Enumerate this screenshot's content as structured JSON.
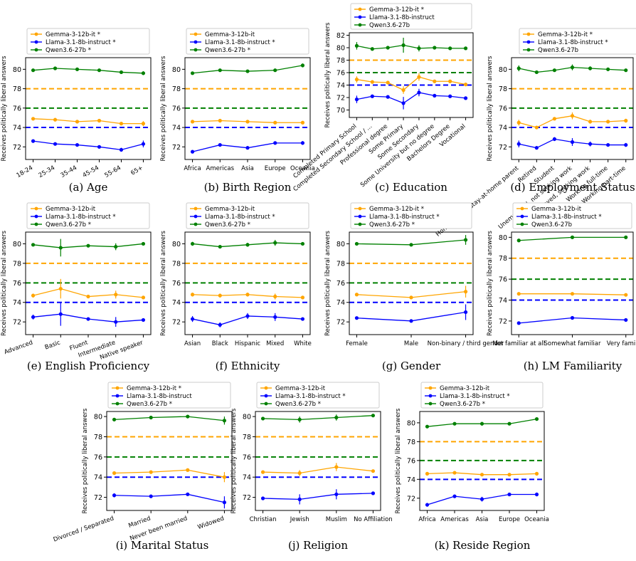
{
  "colors": {
    "gemma": "#FFA500",
    "llama": "#0000FF",
    "qwen": "#008000",
    "axis": "#000000"
  },
  "ylabel": "Receives politically liberal answers",
  "chart_data": [
    {
      "type": "line",
      "caption": "(a) Age",
      "categories": [
        "18-24",
        "25-34",
        "35-44",
        "45-54",
        "55-64",
        "65+"
      ],
      "ylim": [
        70.7,
        81.2
      ],
      "yticks": [
        72,
        74,
        76,
        78,
        80
      ],
      "xlabel_rotation": 30,
      "legend": "top",
      "legend_labels": [
        "Gemma-3-12b-it *",
        "Llama-3.1-8b-instruct *",
        "Qwen3.6-27b *"
      ],
      "series": [
        {
          "name": "Gemma-3-12b-it",
          "color": "#FFA500",
          "values": [
            74.9,
            74.8,
            74.6,
            74.7,
            74.4,
            74.4
          ],
          "errors": [
            0.1,
            0.1,
            0.1,
            0.1,
            0.1,
            0.25
          ],
          "baseline": 78.0
        },
        {
          "name": "Llama-3.1-8b-instruct",
          "color": "#0000FF",
          "values": [
            72.6,
            72.3,
            72.2,
            72.0,
            71.7,
            72.3
          ],
          "errors": [
            0.1,
            0.1,
            0.1,
            0.1,
            0.2,
            0.35
          ],
          "baseline": 74.0
        },
        {
          "name": "Qwen3.6-27b",
          "color": "#008000",
          "values": [
            79.9,
            80.1,
            80.0,
            79.9,
            79.7,
            79.6
          ],
          "errors": [
            0.1,
            0.1,
            0.1,
            0.1,
            0.15,
            0.2
          ],
          "baseline": 76.0
        }
      ]
    },
    {
      "type": "line",
      "caption": "(b) Birth Region",
      "categories": [
        "Africa",
        "Americas",
        "Asia",
        "Europe",
        "Oceania"
      ],
      "ylim": [
        70.7,
        81.2
      ],
      "yticks": [
        72,
        74,
        76,
        78,
        80
      ],
      "xlabel_rotation": 0,
      "legend": "top",
      "legend_labels": [
        "Gemma-3-12b-it",
        "Llama-3.1-8b-instruct *",
        "Qwen3.6-27b *"
      ],
      "series": [
        {
          "name": "Gemma-3-12b-it",
          "color": "#FFA500",
          "values": [
            74.6,
            74.7,
            74.6,
            74.5,
            74.5
          ],
          "errors": [
            0.15,
            0.1,
            0.1,
            0.1,
            0.15
          ],
          "baseline": 78.0
        },
        {
          "name": "Llama-3.1-8b-instruct",
          "color": "#0000FF",
          "values": [
            71.5,
            72.2,
            71.9,
            72.4,
            72.4
          ],
          "errors": [
            0.15,
            0.1,
            0.15,
            0.1,
            0.2
          ],
          "baseline": 74.0
        },
        {
          "name": "Qwen3.6-27b",
          "color": "#008000",
          "values": [
            79.6,
            79.9,
            79.8,
            79.9,
            80.4
          ],
          "errors": [
            0.15,
            0.1,
            0.1,
            0.1,
            0.2
          ],
          "baseline": 76.0
        }
      ]
    },
    {
      "type": "line",
      "caption": "(c) Education",
      "categories": [
        "Completed Primary School",
        "Completed Secondary School / ...",
        "Professional degree",
        "Some Primary",
        "Some Secondary",
        "Some University but no degree",
        "Bachelors Degree",
        "Vocational"
      ],
      "ylim": [
        68.8,
        82.4
      ],
      "yticks": [
        70,
        72,
        74,
        76,
        78,
        80,
        82
      ],
      "xlabel_rotation": 40,
      "legend": "top",
      "legend_labels": [
        "Gemma-3-12b-it *",
        "Llama-3.1-8b-instruct",
        "Qwen3.6-27b"
      ],
      "series": [
        {
          "name": "Gemma-3-12b-it",
          "color": "#FFA500",
          "values": [
            74.9,
            74.5,
            74.4,
            73.2,
            75.3,
            74.6,
            74.6,
            74.1
          ],
          "errors": [
            0.5,
            0.1,
            0.15,
            0.6,
            0.6,
            0.1,
            0.1,
            0.1
          ],
          "baseline": 78.0
        },
        {
          "name": "Llama-3.1-8b-instruct",
          "color": "#0000FF",
          "values": [
            71.7,
            72.2,
            72.1,
            71.1,
            72.8,
            72.3,
            72.2,
            71.9
          ],
          "errors": [
            0.6,
            0.1,
            0.15,
            1.0,
            0.6,
            0.1,
            0.1,
            0.1
          ],
          "baseline": 74.0
        },
        {
          "name": "Qwen3.6-27b",
          "color": "#008000",
          "values": [
            80.3,
            79.8,
            80.0,
            80.4,
            79.9,
            80.0,
            79.9,
            79.9
          ],
          "errors": [
            0.6,
            0.1,
            0.1,
            1.2,
            0.5,
            0.1,
            0.1,
            0.1
          ],
          "baseline": 76.0
        }
      ]
    },
    {
      "type": "line",
      "caption": "(d) Employment Status",
      "categories": [
        "Homemaker / Stay-at-home parent",
        "Retired",
        "Student",
        "Unemployed, not seeking work",
        "Unemployed, seeking work",
        "Working full-time",
        "Working part-time"
      ],
      "ylim": [
        70.7,
        81.2
      ],
      "yticks": [
        72,
        74,
        76,
        78,
        80
      ],
      "xlabel_rotation": 40,
      "legend": "top",
      "legend_labels": [
        "Gemma-3-12b-it *",
        "Llama-3.1-8b-instruct *",
        "Qwen3.6-27b"
      ],
      "series": [
        {
          "name": "Gemma-3-12b-it",
          "color": "#FFA500",
          "values": [
            74.5,
            74.0,
            74.9,
            75.2,
            74.6,
            74.6,
            74.7
          ],
          "errors": [
            0.3,
            0.15,
            0.15,
            0.35,
            0.2,
            0.1,
            0.2
          ],
          "baseline": 78.0
        },
        {
          "name": "Llama-3.1-8b-instruct",
          "color": "#0000FF",
          "values": [
            72.3,
            71.9,
            72.8,
            72.5,
            72.3,
            72.2,
            72.2
          ],
          "errors": [
            0.35,
            0.15,
            0.2,
            0.4,
            0.25,
            0.1,
            0.2
          ],
          "baseline": 74.0
        },
        {
          "name": "Qwen3.6-27b",
          "color": "#008000",
          "values": [
            80.1,
            79.7,
            79.9,
            80.2,
            80.1,
            80.0,
            79.9
          ],
          "errors": [
            0.3,
            0.15,
            0.15,
            0.3,
            0.2,
            0.1,
            0.15
          ],
          "baseline": 76.0
        }
      ]
    },
    {
      "type": "line",
      "caption": "(e) English Proficiency",
      "categories": [
        "Advanced",
        "Basic",
        "Fluent",
        "Intermediate",
        "Native speaker"
      ],
      "ylim": [
        70.7,
        81.2
      ],
      "yticks": [
        72,
        74,
        76,
        78,
        80
      ],
      "xlabel_rotation": 20,
      "legend": "top",
      "legend_labels": [
        "Gemma-3-12b-it",
        "Llama-3.1-8b-instruct *",
        "Qwen3.6-27b *"
      ],
      "series": [
        {
          "name": "Gemma-3-12b-it",
          "color": "#FFA500",
          "values": [
            74.7,
            75.4,
            74.6,
            74.8,
            74.5
          ],
          "errors": [
            0.2,
            1.0,
            0.1,
            0.4,
            0.1
          ],
          "baseline": 78.0
        },
        {
          "name": "Llama-3.1-8b-instruct",
          "color": "#0000FF",
          "values": [
            72.5,
            72.8,
            72.3,
            72.0,
            72.2
          ],
          "errors": [
            0.25,
            1.2,
            0.1,
            0.5,
            0.1
          ],
          "baseline": 74.0
        },
        {
          "name": "Qwen3.6-27b",
          "color": "#008000",
          "values": [
            79.9,
            79.6,
            79.8,
            79.7,
            80.0
          ],
          "errors": [
            0.15,
            0.9,
            0.1,
            0.35,
            0.1
          ],
          "baseline": 76.0
        }
      ]
    },
    {
      "type": "line",
      "caption": "(f) Ethnicity",
      "categories": [
        "Asian",
        "Black",
        "Hispanic",
        "Mixed",
        "White"
      ],
      "ylim": [
        70.7,
        81.2
      ],
      "yticks": [
        72,
        74,
        76,
        78,
        80
      ],
      "xlabel_rotation": 0,
      "legend": "top",
      "legend_labels": [
        "Gemma-3-12b-it",
        "Llama-3.1-8b-instruct *",
        "Qwen3.6-27b *"
      ],
      "series": [
        {
          "name": "Gemma-3-12b-it",
          "color": "#FFA500",
          "values": [
            74.8,
            74.7,
            74.8,
            74.6,
            74.5
          ],
          "errors": [
            0.2,
            0.2,
            0.2,
            0.3,
            0.1
          ],
          "baseline": 78.0
        },
        {
          "name": "Llama-3.1-8b-instruct",
          "color": "#0000FF",
          "values": [
            72.3,
            71.7,
            72.6,
            72.5,
            72.3
          ],
          "errors": [
            0.3,
            0.25,
            0.3,
            0.4,
            0.1
          ],
          "baseline": 74.0
        },
        {
          "name": "Qwen3.6-27b",
          "color": "#008000",
          "values": [
            80.0,
            79.7,
            79.9,
            80.1,
            80.0
          ],
          "errors": [
            0.2,
            0.15,
            0.2,
            0.3,
            0.1
          ],
          "baseline": 76.0
        }
      ]
    },
    {
      "type": "line",
      "caption": "(g) Gender",
      "categories": [
        "Female",
        "Male",
        "Non-binary / third gender"
      ],
      "ylim": [
        70.7,
        81.2
      ],
      "yticks": [
        72,
        74,
        76,
        78,
        80
      ],
      "xlabel_rotation": 0,
      "legend": "top",
      "legend_labels": [
        "Gemma-3-12b-it *",
        "Llama-3.1-8b-instruct *",
        "Qwen3.6-27b *"
      ],
      "series": [
        {
          "name": "Gemma-3-12b-it",
          "color": "#FFA500",
          "values": [
            74.8,
            74.5,
            75.1
          ],
          "errors": [
            0.1,
            0.1,
            0.6
          ],
          "baseline": 78.0
        },
        {
          "name": "Llama-3.1-8b-instruct",
          "color": "#0000FF",
          "values": [
            72.4,
            72.1,
            73.0
          ],
          "errors": [
            0.1,
            0.1,
            0.8
          ],
          "baseline": 74.0
        },
        {
          "name": "Qwen3.6-27b",
          "color": "#008000",
          "values": [
            80.0,
            79.9,
            80.4
          ],
          "errors": [
            0.1,
            0.1,
            0.5
          ],
          "baseline": 76.0
        }
      ]
    },
    {
      "type": "line",
      "caption": "(h) LM Familiarity",
      "categories": [
        "Not familiar at all",
        "Somewhat familiar",
        "Very familiar"
      ],
      "ylim": [
        70.7,
        80.5
      ],
      "yticks": [
        72,
        74,
        76,
        78,
        80
      ],
      "xlabel_rotation": 0,
      "legend": "top",
      "legend_labels": [
        "Gemma-3-12b-it",
        "Llama-3.1-8b-instruct *",
        "Qwen3.6-27b"
      ],
      "series": [
        {
          "name": "Gemma-3-12b-it",
          "color": "#FFA500",
          "values": [
            74.6,
            74.6,
            74.5
          ],
          "errors": [
            0.15,
            0.1,
            0.1
          ],
          "baseline": 78.0
        },
        {
          "name": "Llama-3.1-8b-instruct",
          "color": "#0000FF",
          "values": [
            71.8,
            72.3,
            72.1
          ],
          "errors": [
            0.15,
            0.1,
            0.1
          ],
          "baseline": 74.0
        },
        {
          "name": "Qwen3.6-27b",
          "color": "#008000",
          "values": [
            79.7,
            80.0,
            80.0
          ],
          "errors": [
            0.1,
            0.05,
            0.05
          ],
          "baseline": 76.0
        }
      ]
    },
    {
      "type": "line",
      "caption": "(i) Marital Status",
      "categories": [
        "Divorced / Separated",
        "Married",
        "Never been married",
        "Widowed"
      ],
      "ylim": [
        70.7,
        80.5
      ],
      "yticks": [
        72,
        74,
        76,
        78,
        80
      ],
      "xlabel_rotation": 20,
      "legend": "top",
      "legend_labels": [
        "Gemma-3-12b-it *",
        "Llama-3.1-8b-instruct",
        "Qwen3.6-27b *"
      ],
      "series": [
        {
          "name": "Gemma-3-12b-it",
          "color": "#FFA500",
          "values": [
            74.4,
            74.5,
            74.7,
            74.0
          ],
          "errors": [
            0.15,
            0.1,
            0.1,
            0.5
          ],
          "baseline": 78.0
        },
        {
          "name": "Llama-3.1-8b-instruct",
          "color": "#0000FF",
          "values": [
            72.2,
            72.1,
            72.3,
            71.5
          ],
          "errors": [
            0.2,
            0.1,
            0.1,
            0.6
          ],
          "baseline": 74.0
        },
        {
          "name": "Qwen3.6-27b",
          "color": "#008000",
          "values": [
            79.7,
            79.9,
            80.0,
            79.6
          ],
          "errors": [
            0.15,
            0.1,
            0.1,
            0.4
          ],
          "baseline": 76.0
        }
      ]
    },
    {
      "type": "line",
      "caption": "(j) Religion",
      "categories": [
        "Christian",
        "Jewish",
        "Muslim",
        "No Affiliation"
      ],
      "ylim": [
        70.7,
        80.5
      ],
      "yticks": [
        72,
        74,
        76,
        78,
        80
      ],
      "xlabel_rotation": 0,
      "legend": "top",
      "legend_labels": [
        "Gemma-3-12b-it",
        "Llama-3.1-8b-instruct *",
        "Qwen3.6-27b *"
      ],
      "series": [
        {
          "name": "Gemma-3-12b-it",
          "color": "#FFA500",
          "values": [
            74.5,
            74.4,
            75.0,
            74.6
          ],
          "errors": [
            0.1,
            0.3,
            0.4,
            0.1
          ],
          "baseline": 78.0
        },
        {
          "name": "Llama-3.1-8b-instruct",
          "color": "#0000FF",
          "values": [
            71.9,
            71.8,
            72.3,
            72.4
          ],
          "errors": [
            0.1,
            0.5,
            0.5,
            0.1
          ],
          "baseline": 74.0
        },
        {
          "name": "Qwen3.6-27b",
          "color": "#008000",
          "values": [
            79.8,
            79.7,
            79.9,
            80.1
          ],
          "errors": [
            0.1,
            0.3,
            0.3,
            0.1
          ],
          "baseline": 76.0
        }
      ]
    },
    {
      "type": "line",
      "caption": "(k) Reside Region",
      "categories": [
        "Africa",
        "Americas",
        "Asia",
        "Europe",
        "Oceania"
      ],
      "ylim": [
        70.7,
        81.2
      ],
      "yticks": [
        72,
        74,
        76,
        78,
        80
      ],
      "xlabel_rotation": 0,
      "legend": "top",
      "legend_labels": [
        "Gemma-3-12b-it",
        "Llama-3.1-8b-instruct *",
        "Qwen3.6-27b *"
      ],
      "series": [
        {
          "name": "Gemma-3-12b-it",
          "color": "#FFA500",
          "values": [
            74.6,
            74.7,
            74.5,
            74.5,
            74.6
          ],
          "errors": [
            0.15,
            0.1,
            0.1,
            0.1,
            0.15
          ],
          "baseline": 78.0
        },
        {
          "name": "Llama-3.1-8b-instruct",
          "color": "#0000FF",
          "values": [
            71.3,
            72.2,
            71.9,
            72.4,
            72.4
          ],
          "errors": [
            0.2,
            0.1,
            0.25,
            0.1,
            0.2
          ],
          "baseline": 74.0
        },
        {
          "name": "Qwen3.6-27b",
          "color": "#008000",
          "values": [
            79.6,
            79.9,
            79.9,
            79.9,
            80.4
          ],
          "errors": [
            0.15,
            0.1,
            0.2,
            0.1,
            0.15
          ],
          "baseline": 76.0
        }
      ]
    }
  ]
}
